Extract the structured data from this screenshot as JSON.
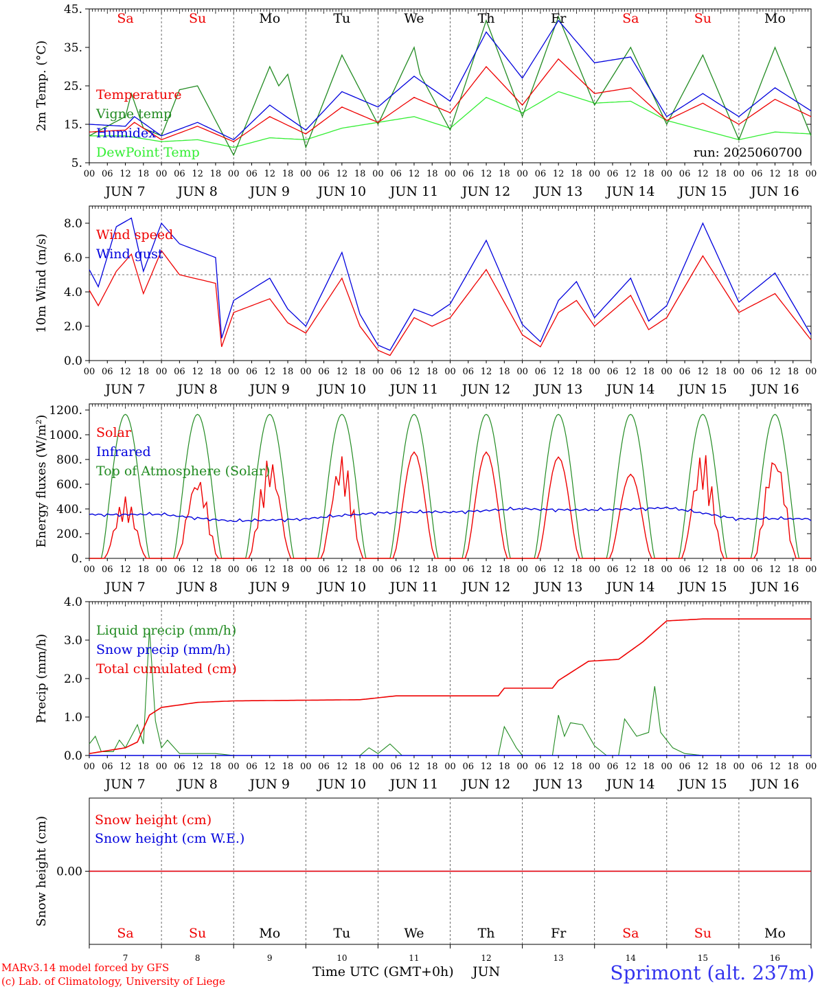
{
  "header": {
    "day_names": [
      "Sa",
      "Su",
      "Mo",
      "Tu",
      "We",
      "Th",
      "Fr",
      "Sa",
      "Su",
      "Mo"
    ],
    "day_name_colors": [
      "#ee0000",
      "#ee0000",
      "#000000",
      "#000000",
      "#000000",
      "#000000",
      "#000000",
      "#ee0000",
      "#ee0000",
      "#000000"
    ],
    "date_labels": [
      "JUN 7",
      "JUN 8",
      "JUN 9",
      "JUN 10",
      "JUN 11",
      "JUN 12",
      "JUN 13",
      "JUN 14",
      "JUN 15",
      "JUN 16"
    ],
    "hour_ticks": [
      "00",
      "06",
      "12",
      "18"
    ],
    "day_numbers": [
      "7",
      "8",
      "9",
      "10",
      "11",
      "12",
      "13",
      "14",
      "15",
      "16"
    ],
    "last_hour_label": "00"
  },
  "footer": {
    "model_line": "MARv3.14 model forced by GFS",
    "credit_line": "(c) Lab. of Climatology, University of Liege",
    "xlabel": "Time UTC (GMT+0h)",
    "month": "JUN",
    "station": "Sprimont (alt. 237m)"
  },
  "chart_data": [
    {
      "type": "line",
      "ylabel": "2m Temp. (°C)",
      "ylim": [
        5,
        45
      ],
      "yticks": [
        "5.",
        "15.",
        "25.",
        "35.",
        "45."
      ],
      "annotation": "run: 2025060700",
      "x": "hours from 2025-06-07 00 UTC, 0..240",
      "series": [
        {
          "name": "Temperature",
          "color": "#ee0000",
          "points": [
            [
              0,
              13
            ],
            [
              12,
              13.5
            ],
            [
              15,
              15.5
            ],
            [
              24,
              11
            ],
            [
              36,
              14.5
            ],
            [
              48,
              10.5
            ],
            [
              60,
              17
            ],
            [
              72,
              12.5
            ],
            [
              84,
              19.5
            ],
            [
              96,
              15.5
            ],
            [
              108,
              22
            ],
            [
              120,
              18
            ],
            [
              132,
              30
            ],
            [
              144,
              20
            ],
            [
              156,
              32
            ],
            [
              168,
              23
            ],
            [
              180,
              24.5
            ],
            [
              192,
              16
            ],
            [
              204,
              20.5
            ],
            [
              216,
              15
            ],
            [
              228,
              21.5
            ],
            [
              240,
              17
            ]
          ]
        },
        {
          "name": "Vigne temp",
          "color": "#228b22",
          "points": [
            [
              0,
              12
            ],
            [
              12,
              17
            ],
            [
              14,
              23
            ],
            [
              18,
              14
            ],
            [
              24,
              12
            ],
            [
              30,
              24
            ],
            [
              36,
              25
            ],
            [
              48,
              7
            ],
            [
              60,
              30
            ],
            [
              63,
              25
            ],
            [
              66,
              28
            ],
            [
              72,
              9
            ],
            [
              84,
              33
            ],
            [
              96,
              15
            ],
            [
              108,
              35
            ],
            [
              110,
              28
            ],
            [
              120,
              13.5
            ],
            [
              132,
              42
            ],
            [
              144,
              17
            ],
            [
              156,
              43
            ],
            [
              168,
              20
            ],
            [
              180,
              35
            ],
            [
              192,
              15
            ],
            [
              204,
              33
            ],
            [
              216,
              11
            ],
            [
              228,
              35
            ],
            [
              240,
              12
            ]
          ]
        },
        {
          "name": "Humidex",
          "color": "#0000dd",
          "points": [
            [
              0,
              15
            ],
            [
              12,
              14.5
            ],
            [
              15,
              17
            ],
            [
              24,
              12
            ],
            [
              36,
              15.5
            ],
            [
              48,
              11
            ],
            [
              60,
              20
            ],
            [
              72,
              13.5
            ],
            [
              84,
              23.5
            ],
            [
              96,
              19.5
            ],
            [
              108,
              27.5
            ],
            [
              120,
              21
            ],
            [
              132,
              39
            ],
            [
              144,
              27
            ],
            [
              156,
              42
            ],
            [
              168,
              31
            ],
            [
              180,
              32.5
            ],
            [
              192,
              17
            ],
            [
              204,
              23
            ],
            [
              216,
              17
            ],
            [
              228,
              24.5
            ],
            [
              240,
              18.5
            ]
          ]
        },
        {
          "name": "DewPoint Temp",
          "color": "#33ee33",
          "points": [
            [
              0,
              12
            ],
            [
              12,
              12
            ],
            [
              24,
              10.5
            ],
            [
              36,
              11
            ],
            [
              48,
              9
            ],
            [
              60,
              11.5
            ],
            [
              72,
              11
            ],
            [
              84,
              14
            ],
            [
              96,
              15.5
            ],
            [
              108,
              17
            ],
            [
              120,
              14
            ],
            [
              132,
              22
            ],
            [
              144,
              18
            ],
            [
              156,
              23.5
            ],
            [
              168,
              20.5
            ],
            [
              180,
              21
            ],
            [
              192,
              16
            ],
            [
              204,
              13.5
            ],
            [
              216,
              11
            ],
            [
              228,
              13
            ],
            [
              240,
              12.5
            ]
          ]
        }
      ]
    },
    {
      "type": "line",
      "ylabel": "10m Wind (m/s)",
      "ylim": [
        0,
        9
      ],
      "yticks": [
        "0.0",
        "2.0",
        "4.0",
        "6.0",
        "8.0"
      ],
      "reference_line": 5,
      "x": "hours from 2025-06-07 00 UTC, 0..240",
      "series": [
        {
          "name": "Wind speed",
          "color": "#ee0000",
          "points": [
            [
              0,
              4.1
            ],
            [
              3,
              3.2
            ],
            [
              9,
              5.2
            ],
            [
              14,
              6.2
            ],
            [
              18,
              3.9
            ],
            [
              24,
              6.4
            ],
            [
              30,
              5
            ],
            [
              42,
              4.5
            ],
            [
              44,
              0.8
            ],
            [
              48,
              2.8
            ],
            [
              60,
              3.6
            ],
            [
              66,
              2.2
            ],
            [
              72,
              1.6
            ],
            [
              84,
              4.8
            ],
            [
              90,
              2
            ],
            [
              96,
              0.6
            ],
            [
              100,
              0.3
            ],
            [
              108,
              2.5
            ],
            [
              114,
              2
            ],
            [
              120,
              2.5
            ],
            [
              132,
              5.3
            ],
            [
              144,
              1.5
            ],
            [
              150,
              0.8
            ],
            [
              156,
              2.8
            ],
            [
              162,
              3.5
            ],
            [
              168,
              2
            ],
            [
              180,
              3.8
            ],
            [
              186,
              1.8
            ],
            [
              192,
              2.5
            ],
            [
              204,
              6.1
            ],
            [
              216,
              2.8
            ],
            [
              228,
              3.9
            ],
            [
              240,
              1.2
            ]
          ]
        },
        {
          "name": "Wind gust",
          "color": "#0000dd",
          "points": [
            [
              0,
              5.3
            ],
            [
              3,
              4.3
            ],
            [
              9,
              7.8
            ],
            [
              14,
              8.3
            ],
            [
              18,
              5.2
            ],
            [
              24,
              8
            ],
            [
              30,
              6.8
            ],
            [
              42,
              6
            ],
            [
              44,
              1.3
            ],
            [
              48,
              3.5
            ],
            [
              60,
              4.8
            ],
            [
              66,
              3
            ],
            [
              72,
              2
            ],
            [
              84,
              6.3
            ],
            [
              90,
              2.7
            ],
            [
              96,
              0.9
            ],
            [
              100,
              0.6
            ],
            [
              108,
              3
            ],
            [
              114,
              2.6
            ],
            [
              120,
              3.3
            ],
            [
              132,
              7
            ],
            [
              144,
              2.1
            ],
            [
              150,
              1.1
            ],
            [
              156,
              3.5
            ],
            [
              162,
              4.6
            ],
            [
              168,
              2.5
            ],
            [
              180,
              4.8
            ],
            [
              186,
              2.3
            ],
            [
              192,
              3.2
            ],
            [
              204,
              8
            ],
            [
              216,
              3.4
            ],
            [
              228,
              5.1
            ],
            [
              240,
              1.5
            ]
          ]
        }
      ]
    },
    {
      "type": "line",
      "ylabel": "Energy fluxes (W/m²)",
      "ylim": [
        0,
        1250
      ],
      "yticks": [
        "0.",
        "200.",
        "400.",
        "600.",
        "800.",
        "1000.",
        "1200."
      ],
      "x": "hours from 2025-06-07 00 UTC, 0..240",
      "series": [
        {
          "name": "Solar",
          "color": "#ee0000",
          "daily_peaks": [
            500,
            680,
            830,
            840,
            860,
            860,
            820,
            680,
            870,
            880
          ]
        },
        {
          "name": "Infrared",
          "color": "#0000dd",
          "points": [
            [
              0,
              355
            ],
            [
              24,
              355
            ],
            [
              48,
              300
            ],
            [
              72,
              320
            ],
            [
              96,
              370
            ],
            [
              120,
              375
            ],
            [
              144,
              400
            ],
            [
              168,
              390
            ],
            [
              192,
              410
            ],
            [
              216,
              320
            ],
            [
              240,
              320
            ]
          ]
        },
        {
          "name": "Top of Atmosphere (Solar)",
          "color": "#228b22",
          "daily_peaks": [
            1165,
            1165,
            1165,
            1165,
            1165,
            1165,
            1165,
            1165,
            1165,
            1165
          ]
        }
      ]
    },
    {
      "type": "line",
      "ylabel": "Precip (mm/h)",
      "ylim": [
        0,
        4
      ],
      "yticks": [
        "0.0",
        "1.0",
        "2.0",
        "3.0",
        "4.0"
      ],
      "x": "hours from 2025-06-07 00 UTC, 0..240",
      "series": [
        {
          "name": "Liquid precip (mm/h)",
          "color": "#228b22",
          "points": [
            [
              0,
              0.3
            ],
            [
              2,
              0.5
            ],
            [
              4,
              0.1
            ],
            [
              8,
              0.1
            ],
            [
              10,
              0.4
            ],
            [
              12,
              0.2
            ],
            [
              16,
              0.8
            ],
            [
              18,
              0.3
            ],
            [
              20,
              3.3
            ],
            [
              22,
              0.9
            ],
            [
              24,
              0.2
            ],
            [
              26,
              0.4
            ],
            [
              30,
              0.05
            ],
            [
              42,
              0.05
            ],
            [
              48,
              0
            ],
            [
              90,
              0
            ],
            [
              93,
              0.2
            ],
            [
              96,
              0.05
            ],
            [
              100,
              0.3
            ],
            [
              104,
              0
            ],
            [
              136,
              0
            ],
            [
              138,
              0.75
            ],
            [
              142,
              0.2
            ],
            [
              144,
              0
            ],
            [
              154,
              0
            ],
            [
              156,
              1.05
            ],
            [
              158,
              0.5
            ],
            [
              160,
              0.85
            ],
            [
              164,
              0.8
            ],
            [
              168,
              0.25
            ],
            [
              172,
              0
            ],
            [
              176,
              0
            ],
            [
              178,
              0.95
            ],
            [
              182,
              0.5
            ],
            [
              186,
              0.6
            ],
            [
              188,
              1.8
            ],
            [
              190,
              0.6
            ],
            [
              194,
              0.2
            ],
            [
              198,
              0.05
            ],
            [
              204,
              0
            ],
            [
              240,
              0
            ]
          ]
        },
        {
          "name": "Snow precip (mm/h)",
          "color": "#0000dd",
          "points": [
            [
              0,
              0
            ],
            [
              240,
              0
            ]
          ]
        },
        {
          "name": "Total cumulated (cm)",
          "color": "#ee0000",
          "points": [
            [
              0,
              0.05
            ],
            [
              12,
              0.2
            ],
            [
              16,
              0.35
            ],
            [
              20,
              1.05
            ],
            [
              24,
              1.25
            ],
            [
              36,
              1.38
            ],
            [
              48,
              1.42
            ],
            [
              90,
              1.45
            ],
            [
              96,
              1.5
            ],
            [
              102,
              1.55
            ],
            [
              136,
              1.55
            ],
            [
              138,
              1.75
            ],
            [
              154,
              1.75
            ],
            [
              156,
              1.95
            ],
            [
              166,
              2.45
            ],
            [
              176,
              2.5
            ],
            [
              184,
              2.95
            ],
            [
              192,
              3.5
            ],
            [
              204,
              3.55
            ],
            [
              240,
              3.55
            ]
          ]
        }
      ]
    },
    {
      "type": "line",
      "ylabel": "Snow height (cm)",
      "ylim": [
        -1,
        1
      ],
      "yticks": [
        "0.00"
      ],
      "x": "hours from 2025-06-07 00 UTC, 0..240",
      "series": [
        {
          "name": "Snow height (cm)",
          "color": "#ee0000",
          "points": [
            [
              0,
              0
            ],
            [
              240,
              0
            ]
          ]
        },
        {
          "name": "Snow height (cm W.E.)",
          "color": "#0000dd",
          "points": [
            [
              0,
              0
            ],
            [
              240,
              0
            ]
          ]
        }
      ]
    }
  ]
}
